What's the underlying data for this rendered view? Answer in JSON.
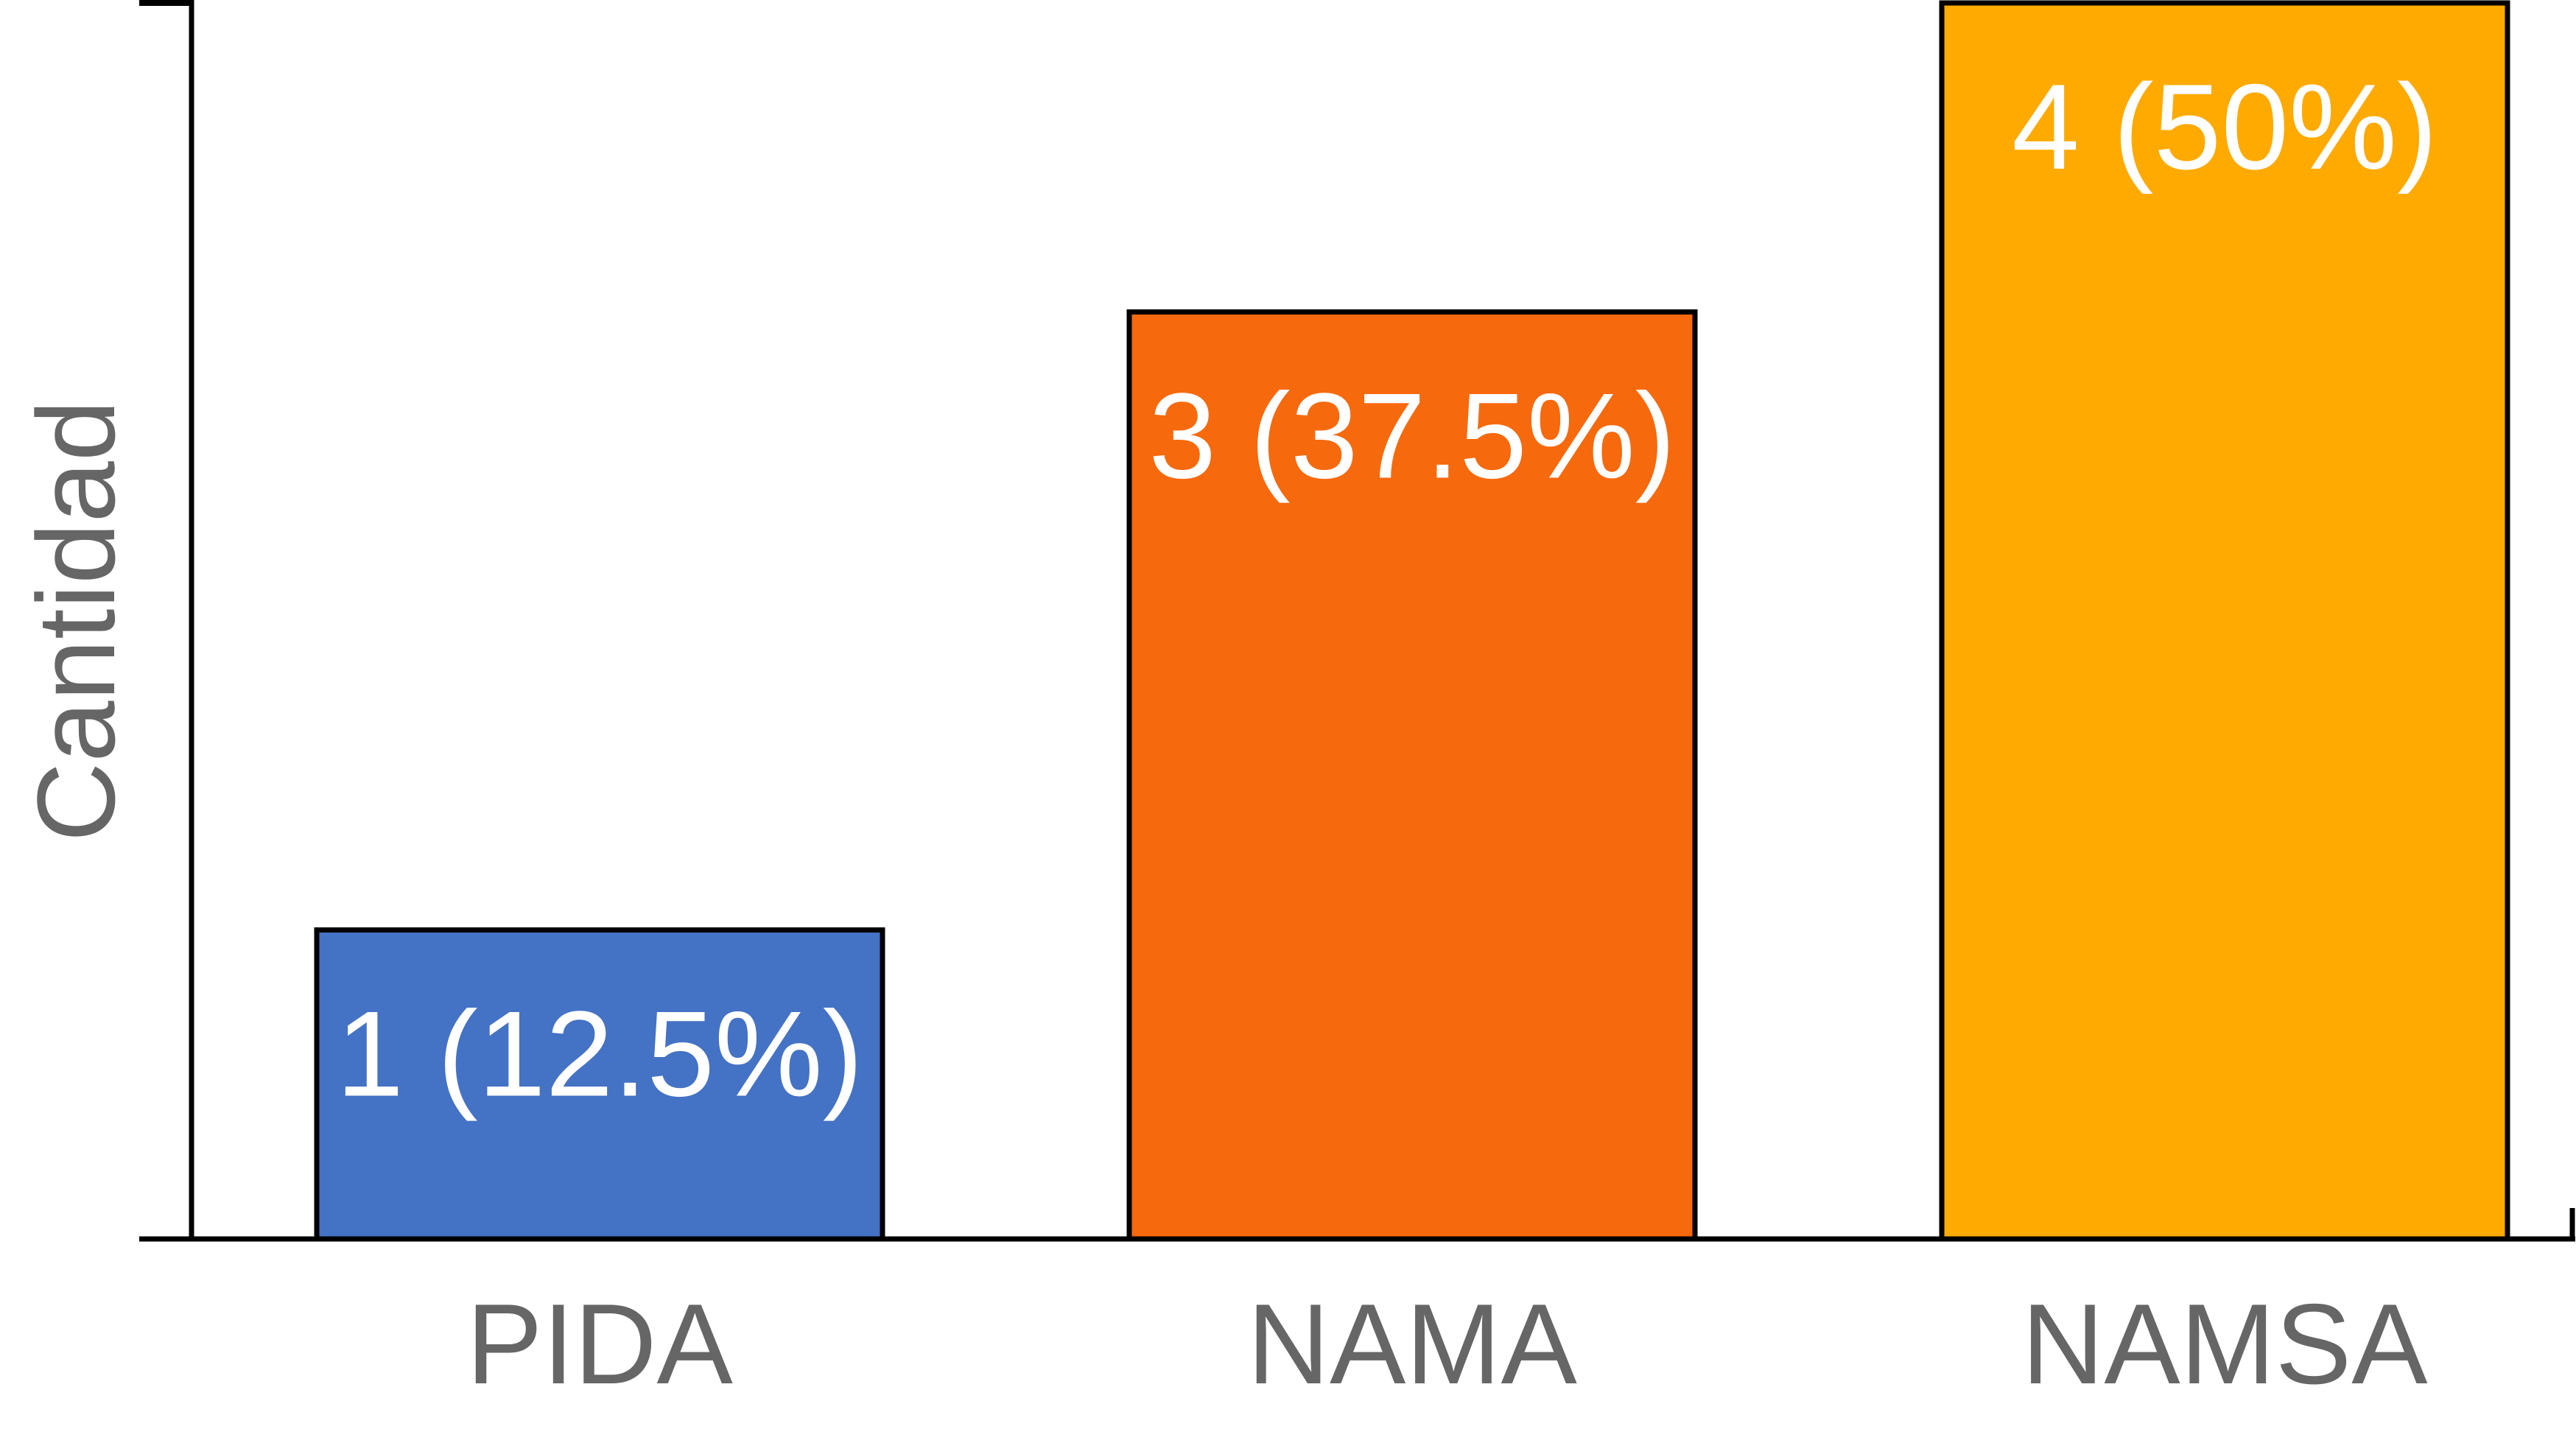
{
  "chart_data": {
    "type": "bar",
    "title": "",
    "xlabel": "",
    "ylabel": "Cantidad",
    "categories": [
      "PIDA",
      "NAMA",
      "NAMSA"
    ],
    "values": [
      1,
      3,
      4
    ],
    "data_labels": [
      "1 (12.5%)",
      "3 (37.5%)",
      "4 (50%)"
    ],
    "colors": [
      "#4472C4",
      "#F7690D",
      "#FFAA00"
    ],
    "ylim": [
      0,
      4
    ],
    "grid": false,
    "legend": "none"
  }
}
